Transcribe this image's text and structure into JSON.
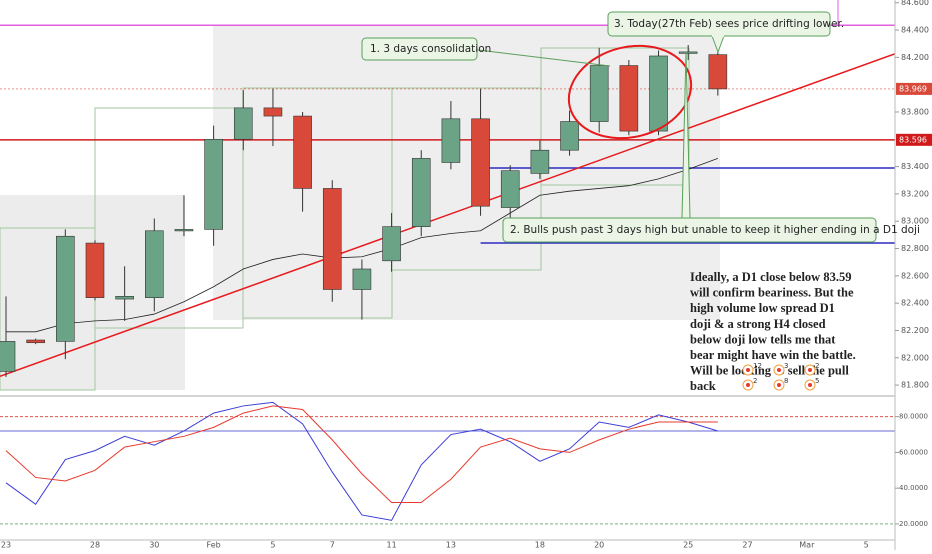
{
  "chart_data": [
    {
      "type": "candlestick",
      "categories": [
        "23",
        null,
        null,
        "28",
        null,
        "30",
        null,
        "Feb",
        null,
        "5",
        null,
        "7",
        null,
        "11",
        null,
        "13",
        null,
        null,
        "18",
        null,
        "20",
        null,
        null,
        "25",
        null,
        "27",
        null,
        "Mar",
        null,
        "5"
      ],
      "open": [
        81.9,
        82.13,
        82.12,
        82.84,
        82.43,
        82.44,
        82.93,
        82.94,
        83.6,
        83.83,
        83.77,
        83.24,
        82.5,
        82.71,
        82.96,
        83.43,
        83.75,
        83.1,
        83.35,
        83.52,
        83.73,
        84.14,
        83.66,
        84.23,
        84.22,
        null,
        null,
        null,
        null,
        null
      ],
      "high": [
        82.45,
        82.14,
        82.94,
        82.86,
        82.67,
        83.02,
        83.19,
        83.7,
        83.96,
        83.97,
        83.8,
        83.3,
        82.72,
        83.06,
        83.52,
        83.88,
        83.97,
        83.41,
        83.59,
        83.81,
        84.27,
        84.18,
        84.25,
        84.29,
        84.24,
        null,
        null,
        null,
        null,
        null
      ],
      "low": [
        81.86,
        82.1,
        81.99,
        82.42,
        82.27,
        82.34,
        82.89,
        82.82,
        83.52,
        83.55,
        83.07,
        82.41,
        82.28,
        82.63,
        82.89,
        83.38,
        83.04,
        82.85,
        83.31,
        83.48,
        83.65,
        83.63,
        83.63,
        84.18,
        83.92,
        null,
        null,
        null,
        null,
        null
      ],
      "close": [
        82.12,
        82.11,
        82.89,
        82.44,
        82.45,
        82.93,
        82.94,
        83.6,
        83.83,
        83.77,
        83.24,
        82.5,
        82.65,
        82.96,
        83.46,
        83.75,
        83.11,
        83.37,
        83.52,
        83.73,
        84.14,
        83.66,
        84.21,
        84.24,
        83.969,
        null,
        null,
        null,
        null,
        null
      ],
      "up_color": "#6aa386",
      "down_color": "#d9493a",
      "moving_average": {
        "color": "#222222",
        "values": [
          82.19,
          82.19,
          82.25,
          82.27,
          82.28,
          82.32,
          82.41,
          82.52,
          82.65,
          82.72,
          82.76,
          82.73,
          82.74,
          82.8,
          82.88,
          82.91,
          82.93,
          83.06,
          83.19,
          83.22,
          83.24,
          83.26,
          83.31,
          83.38,
          83.46,
          null,
          null,
          null,
          null,
          null
        ]
      },
      "trendline": {
        "index": [
          0,
          29
        ],
        "values": [
          81.88,
          84.15
        ],
        "color": "#e8191c"
      },
      "levels": [
        {
          "value": 83.596,
          "label": "83.596",
          "color": "#d0191b",
          "from": 0,
          "style": "solid"
        },
        {
          "value": 83.39,
          "color": "#2b2bc2",
          "from": 16,
          "style": "solid"
        },
        {
          "value": 82.84,
          "color": "#2b2bc2",
          "from": 16,
          "style": "solid"
        },
        {
          "value": 83.969,
          "label": "83.969",
          "color": "#d9493a",
          "from": 0,
          "style": "dashed"
        },
        {
          "value": 84.435,
          "color": "#e060e0",
          "from": 0,
          "style": "solid"
        }
      ],
      "ylim": [
        81.72,
        84.62
      ],
      "yticks": [
        {
          "value": 84.6,
          "label": "84.600"
        },
        {
          "value": 84.4,
          "label": "84.400"
        },
        {
          "value": 84.2,
          "label": "84.200"
        },
        {
          "value": 83.8,
          "label": "83.800"
        },
        {
          "value": 83.4,
          "label": "83.400"
        },
        {
          "value": 83.2,
          "label": "83.200"
        },
        {
          "value": 83.0,
          "label": "83.000"
        },
        {
          "value": 82.8,
          "label": "82.800"
        },
        {
          "value": 82.6,
          "label": "82.600"
        },
        {
          "value": 82.4,
          "label": "82.400"
        },
        {
          "value": 82.2,
          "label": "82.200"
        },
        {
          "value": 82.0,
          "label": "82.000"
        },
        {
          "value": 81.8,
          "label": "81.800"
        }
      ],
      "annotations": [
        "1. 3 days consolidation",
        "3. Today(27th Feb) sees price drifting lower.",
        "2. Bulls push past 3 days high but unable to keep it higher ending in a D1 doji"
      ],
      "note": [
        "Ideally, a D1 close below 83.59",
        "will confirm beariness. But the",
        "high volume low spread D1",
        "doji & a strong H4 closed",
        "below doji low tells me that",
        "bear might have win the battle.",
        "Will be looking to sell the pull",
        "back"
      ],
      "reactions": [
        12,
        3,
        2,
        2,
        8,
        5
      ]
    },
    {
      "type": "line",
      "series": [
        {
          "name": "%K",
          "color": "#3d3dd6",
          "values": [
            43,
            31,
            56,
            61,
            69,
            64,
            72,
            82,
            86,
            88,
            76,
            49,
            25,
            22,
            53,
            70,
            73,
            66,
            55,
            62,
            77,
            74,
            81,
            77,
            72,
            null,
            null,
            null,
            null,
            null
          ]
        },
        {
          "name": "%D",
          "color": "#e8392c",
          "values": [
            61,
            46,
            44,
            50,
            63,
            66,
            69,
            74,
            82,
            86,
            84,
            67,
            48,
            32,
            32,
            45,
            63,
            68,
            62,
            60,
            67,
            73,
            77,
            77,
            77,
            null,
            null,
            null,
            null,
            null
          ]
        }
      ],
      "levels": [
        {
          "value": 80,
          "color": "#e0544a",
          "style": "dashed"
        },
        {
          "value": 72,
          "color": "#6a6ad8",
          "style": "solid"
        },
        {
          "value": 20,
          "color": "#7fb07f",
          "style": "dashed"
        }
      ],
      "ylim": [
        11,
        91
      ],
      "yticks": [
        {
          "value": 20,
          "label": "20.0000"
        },
        {
          "value": 40,
          "label": "40.0000"
        },
        {
          "value": 60,
          "label": "60.0000"
        },
        {
          "value": 80,
          "label": "80.0000"
        }
      ]
    }
  ]
}
